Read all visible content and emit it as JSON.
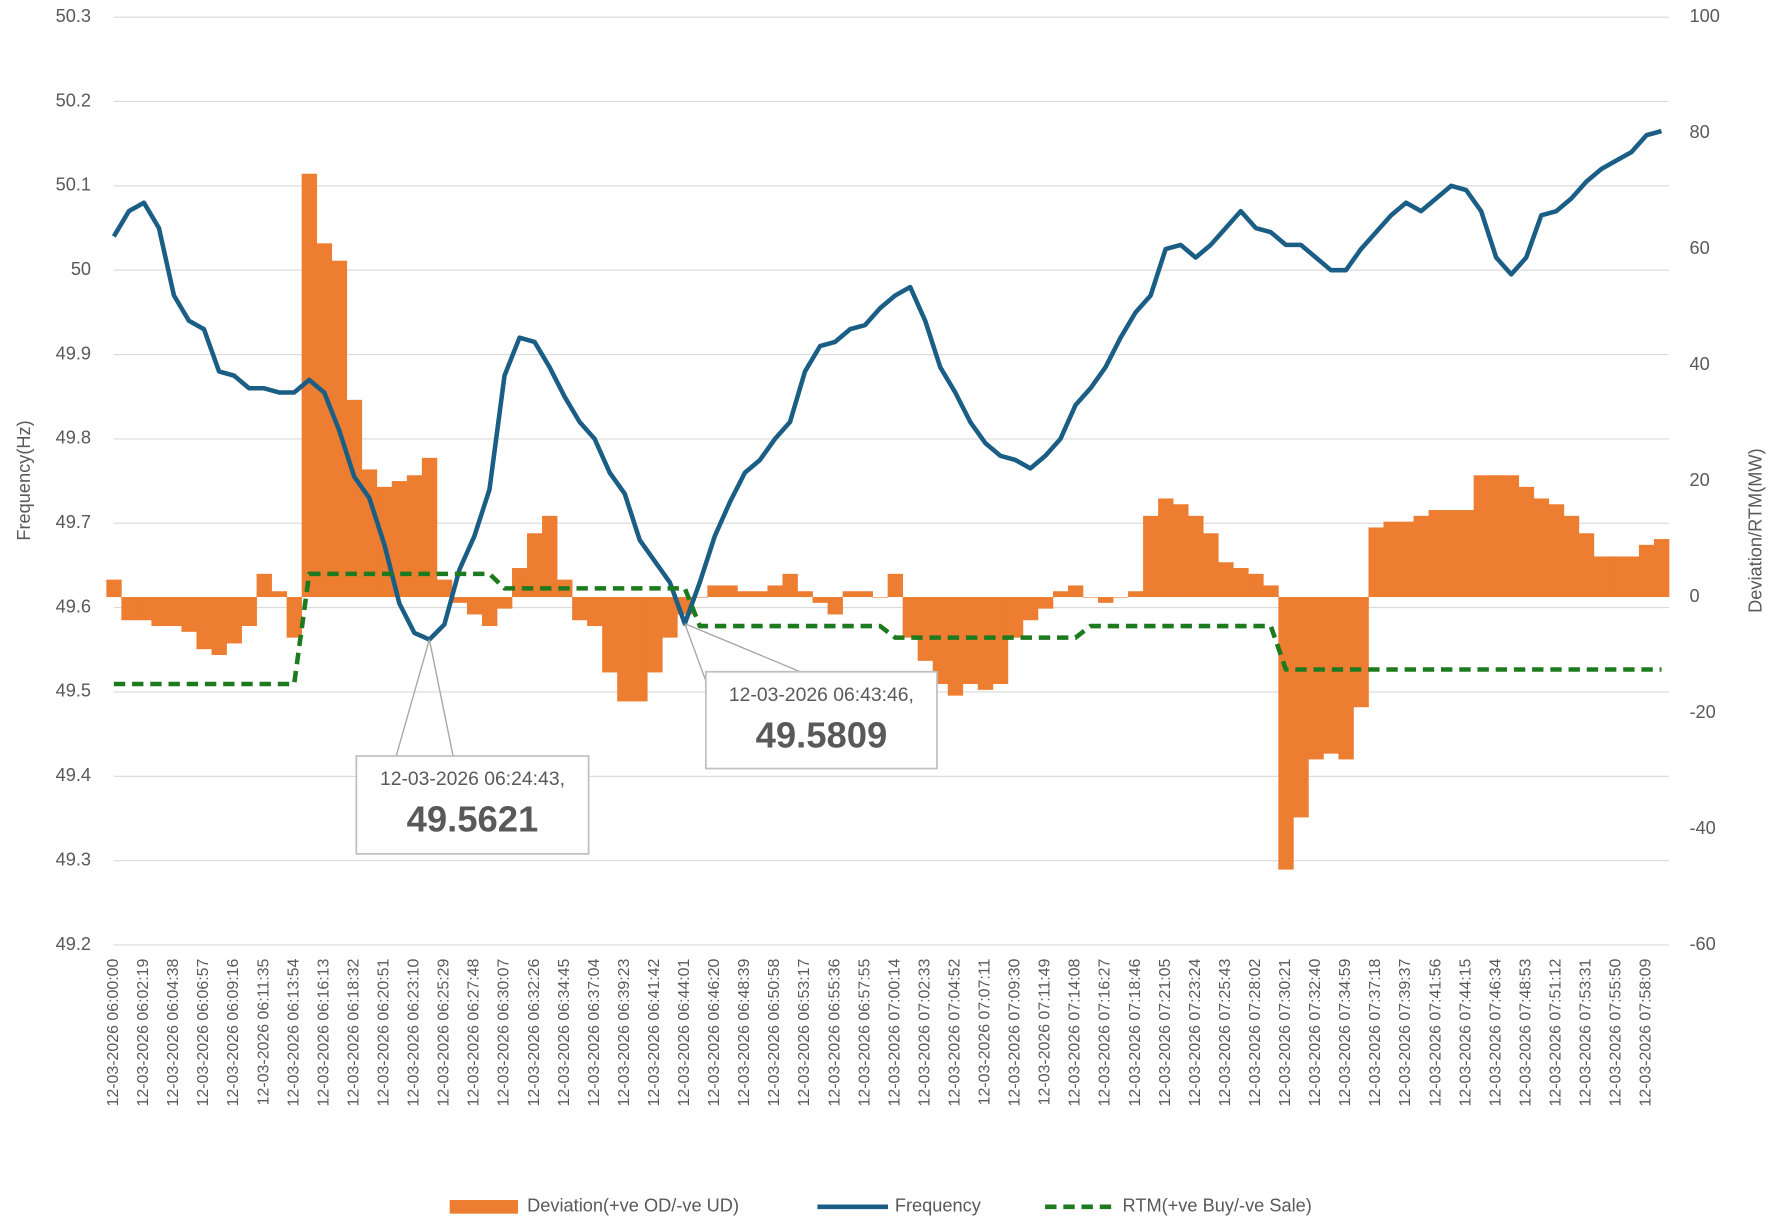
{
  "chart_data": {
    "type": "combo",
    "y_label": "Frequency(Hz)",
    "y2_label": "Deviation/RTM(MW)",
    "ylim": [
      49.2,
      50.3
    ],
    "yticks": [
      49.2,
      49.3,
      49.4,
      49.5,
      49.6,
      49.7,
      49.8,
      49.9,
      50,
      50.1,
      50.2,
      50.3
    ],
    "y2lim": [
      -60,
      100
    ],
    "y2ticks": [
      -60,
      -40,
      -20,
      0,
      20,
      40,
      60,
      80,
      100
    ],
    "grid": true,
    "legend": "bottom",
    "categories": [
      "12-03-2026 06:00:00",
      null,
      "12-03-2026 06:02:19",
      null,
      "12-03-2026 06:04:38",
      null,
      "12-03-2026 06:06:57",
      null,
      "12-03-2026 06:09:16",
      null,
      "12-03-2026 06:11:35",
      null,
      "12-03-2026 06:13:54",
      null,
      "12-03-2026 06:16:13",
      null,
      "12-03-2026 06:18:32",
      null,
      "12-03-2026 06:20:51",
      null,
      "12-03-2026 06:23:10",
      null,
      "12-03-2026 06:25:29",
      null,
      "12-03-2026 06:27:48",
      null,
      "12-03-2026 06:30:07",
      null,
      "12-03-2026 06:32:26",
      null,
      "12-03-2026 06:34:45",
      null,
      "12-03-2026 06:37:04",
      null,
      "12-03-2026 06:39:23",
      null,
      "12-03-2026 06:41:42",
      null,
      "12-03-2026 06:44:01",
      null,
      "12-03-2026 06:46:20",
      null,
      "12-03-2026 06:48:39",
      null,
      "12-03-2026 06:50:58",
      null,
      "12-03-2026 06:53:17",
      null,
      "12-03-2026 06:55:36",
      null,
      "12-03-2026 06:57:55",
      null,
      "12-03-2026 07:00:14",
      null,
      "12-03-2026 07:02:33",
      null,
      "12-03-2026 07:04:52",
      null,
      "12-03-2026 07:07:11",
      null,
      "12-03-2026 07:09:30",
      null,
      "12-03-2026 07:11:49",
      null,
      "12-03-2026 07:14:08",
      null,
      "12-03-2026 07:16:27",
      null,
      "12-03-2026 07:18:46",
      null,
      "12-03-2026 07:21:05",
      null,
      "12-03-2026 07:23:24",
      null,
      "12-03-2026 07:25:43",
      null,
      "12-03-2026 07:28:02",
      null,
      "12-03-2026 07:30:21",
      null,
      "12-03-2026 07:32:40",
      null,
      "12-03-2026 07:34:59",
      null,
      "12-03-2026 07:37:18",
      null,
      "12-03-2026 07:39:37",
      null,
      "12-03-2026 07:41:56",
      null,
      "12-03-2026 07:44:15",
      null,
      "12-03-2026 07:46:34",
      null,
      "12-03-2026 07:48:53",
      null,
      "12-03-2026 07:51:12",
      null,
      "12-03-2026 07:53:31",
      null,
      "12-03-2026 07:55:50",
      null,
      "12-03-2026 07:58:09",
      null
    ],
    "series": [
      {
        "name": "Deviation(+ve OD/-ve UD)",
        "type": "bar",
        "axis": "y2",
        "color": "#ed7d31",
        "values": [
          3,
          -4,
          -4,
          -5,
          -5,
          -6,
          -9,
          -10,
          -8,
          -5,
          4,
          1,
          -7,
          73,
          61,
          58,
          34,
          22,
          19,
          20,
          21,
          24,
          3,
          -1,
          -3,
          -5,
          -2,
          5,
          11,
          14,
          3,
          -4,
          -5,
          -13,
          -18,
          -18,
          -13,
          -7,
          -3,
          0,
          2,
          2,
          1,
          1,
          2,
          4,
          1,
          -1,
          -3,
          1,
          1,
          0,
          4,
          -7,
          -11,
          -15,
          -17,
          -15,
          -16,
          -15,
          -7,
          -4,
          -2,
          1,
          2,
          0,
          -1,
          0,
          1,
          14,
          17,
          16,
          14,
          11,
          6,
          5,
          4,
          2,
          -47,
          -38,
          -28,
          -27,
          -28,
          -19,
          12,
          13,
          13,
          14,
          15,
          15,
          15,
          21,
          21,
          21,
          19,
          17,
          16,
          14,
          11,
          7,
          7,
          7,
          9,
          10
        ]
      },
      {
        "name": "Frequency",
        "type": "line",
        "color": "#1b5e85",
        "values": [
          50.04,
          50.07,
          50.08,
          50.05,
          49.97,
          49.94,
          49.93,
          49.88,
          49.875,
          49.86,
          49.86,
          49.855,
          49.855,
          49.87,
          49.855,
          49.81,
          49.755,
          49.73,
          49.675,
          49.605,
          49.57,
          49.5621,
          49.58,
          49.645,
          49.685,
          49.74,
          49.875,
          49.92,
          49.915,
          49.885,
          49.85,
          49.82,
          49.8,
          49.76,
          49.735,
          49.68,
          49.655,
          49.63,
          49.5809,
          49.63,
          49.685,
          49.725,
          49.76,
          49.775,
          49.8,
          49.82,
          49.88,
          49.91,
          49.915,
          49.93,
          49.935,
          49.955,
          49.97,
          49.98,
          49.94,
          49.885,
          49.855,
          49.82,
          49.795,
          49.78,
          49.775,
          49.765,
          49.78,
          49.8,
          49.84,
          49.86,
          49.885,
          49.92,
          49.95,
          49.97,
          50.025,
          50.03,
          50.015,
          50.03,
          50.05,
          50.07,
          50.05,
          50.045,
          50.03,
          50.03,
          50.015,
          50.0,
          50.0,
          50.025,
          50.045,
          50.065,
          50.08,
          50.07,
          50.085,
          50.1,
          50.095,
          50.07,
          50.015,
          49.995,
          50.015,
          50.065,
          50.07,
          50.085,
          50.105,
          50.12,
          50.13,
          50.14,
          50.16,
          50.165
        ]
      },
      {
        "name": "RTM(+ve Buy/-ve Sale)",
        "type": "line",
        "axis": "y2",
        "color": "#1e7a1e",
        "dashed": true,
        "values": [
          -15,
          -15,
          -15,
          -15,
          -15,
          -15,
          -15,
          -15,
          -15,
          -15,
          -15,
          -15,
          -15,
          4,
          4,
          4,
          4,
          4,
          4,
          4,
          4,
          4,
          4,
          4,
          4,
          4,
          1.5,
          1.5,
          1.5,
          1.5,
          1.5,
          1.5,
          1.5,
          1.5,
          1.5,
          1.5,
          1.5,
          1.5,
          1.5,
          -5,
          -5,
          -5,
          -5,
          -5,
          -5,
          -5,
          -5,
          -5,
          -5,
          -5,
          -5,
          -5,
          -7,
          -7,
          -7,
          -7,
          -7,
          -7,
          -7,
          -7,
          -7,
          -7,
          -7,
          -7,
          -7,
          -5,
          -5,
          -5,
          -5,
          -5,
          -5,
          -5,
          -5,
          -5,
          -5,
          -5,
          -5,
          -5,
          -12.5,
          -12.5,
          -12.5,
          -12.5,
          -12.5,
          -12.5,
          -12.5,
          -12.5,
          -12.5,
          -12.5,
          -12.5,
          -12.5,
          -12.5,
          -12.5,
          -12.5,
          -12.5,
          -12.5,
          -12.5,
          -12.5,
          -12.5,
          -12.5,
          -12.5,
          -12.5,
          -12.5,
          -12.5,
          -12.5
        ]
      }
    ],
    "annotations": [
      {
        "label": "12-03-2026 06:24:43,",
        "value": 49.5621
      },
      {
        "label": "12-03-2026 06:43:46,",
        "value": 49.5809
      }
    ]
  }
}
